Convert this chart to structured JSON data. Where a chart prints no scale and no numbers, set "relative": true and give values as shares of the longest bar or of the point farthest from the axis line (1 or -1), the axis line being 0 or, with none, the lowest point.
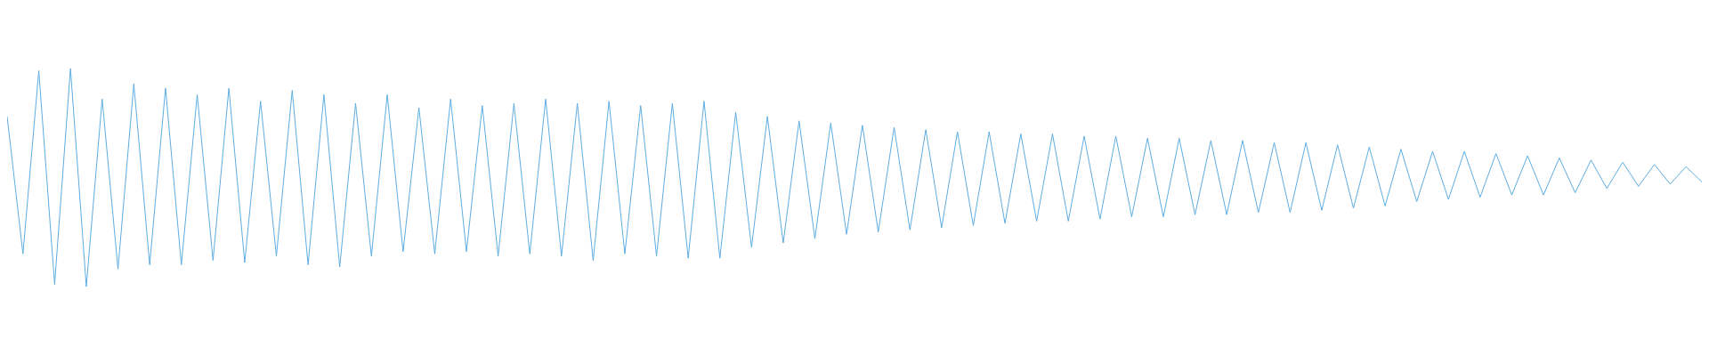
{
  "chart_data": {
    "type": "line",
    "relative": true,
    "color": "#5dade2",
    "categories": [
      null,
      null,
      null,
      null,
      null,
      null,
      null,
      null,
      null,
      null,
      null,
      null,
      null,
      null,
      null,
      null,
      null,
      null,
      null,
      null,
      null,
      null,
      null,
      null,
      null,
      null,
      null,
      null,
      null,
      null,
      null,
      null,
      null,
      null,
      null,
      null,
      null,
      null,
      null,
      null,
      null,
      null,
      null,
      null,
      null,
      null,
      null,
      null,
      null,
      null,
      null,
      null,
      null,
      null,
      null,
      null,
      null,
      null,
      null,
      null,
      null,
      null,
      null,
      null,
      null,
      null,
      null,
      null,
      null,
      null,
      null,
      null,
      null,
      null,
      null,
      null,
      null,
      null,
      null,
      null,
      null,
      null,
      null,
      null,
      null,
      null,
      null,
      null,
      null,
      null,
      null,
      null,
      null,
      null,
      null,
      null,
      null,
      null,
      null,
      null,
      null,
      null,
      null,
      null,
      null,
      null,
      null,
      null
    ],
    "values": [
      0.78,
      0.15,
      0.99,
      0.01,
      1.0,
      0.0,
      0.86,
      0.08,
      0.93,
      0.1,
      0.91,
      0.1,
      0.88,
      0.12,
      0.91,
      0.11,
      0.85,
      0.14,
      0.9,
      0.1,
      0.88,
      0.09,
      0.84,
      0.14,
      0.88,
      0.16,
      0.82,
      0.15,
      0.86,
      0.16,
      0.83,
      0.14,
      0.84,
      0.15,
      0.86,
      0.14,
      0.84,
      0.12,
      0.85,
      0.15,
      0.83,
      0.14,
      0.84,
      0.13,
      0.85,
      0.13,
      0.8,
      0.18,
      0.78,
      0.2,
      0.76,
      0.22,
      0.75,
      0.24,
      0.74,
      0.25,
      0.73,
      0.26,
      0.72,
      0.27,
      0.71,
      0.28,
      0.71,
      0.29,
      0.7,
      0.3,
      0.7,
      0.3,
      0.69,
      0.31,
      0.69,
      0.32,
      0.68,
      0.32,
      0.68,
      0.33,
      0.67,
      0.33,
      0.67,
      0.34,
      0.66,
      0.34,
      0.66,
      0.35,
      0.65,
      0.36,
      0.64,
      0.37,
      0.63,
      0.39,
      0.62,
      0.4,
      0.62,
      0.41,
      0.61,
      0.42,
      0.6,
      0.42,
      0.59,
      0.43,
      0.58,
      0.45,
      0.57,
      0.46,
      0.56,
      0.47,
      0.55,
      0.48
    ]
  }
}
